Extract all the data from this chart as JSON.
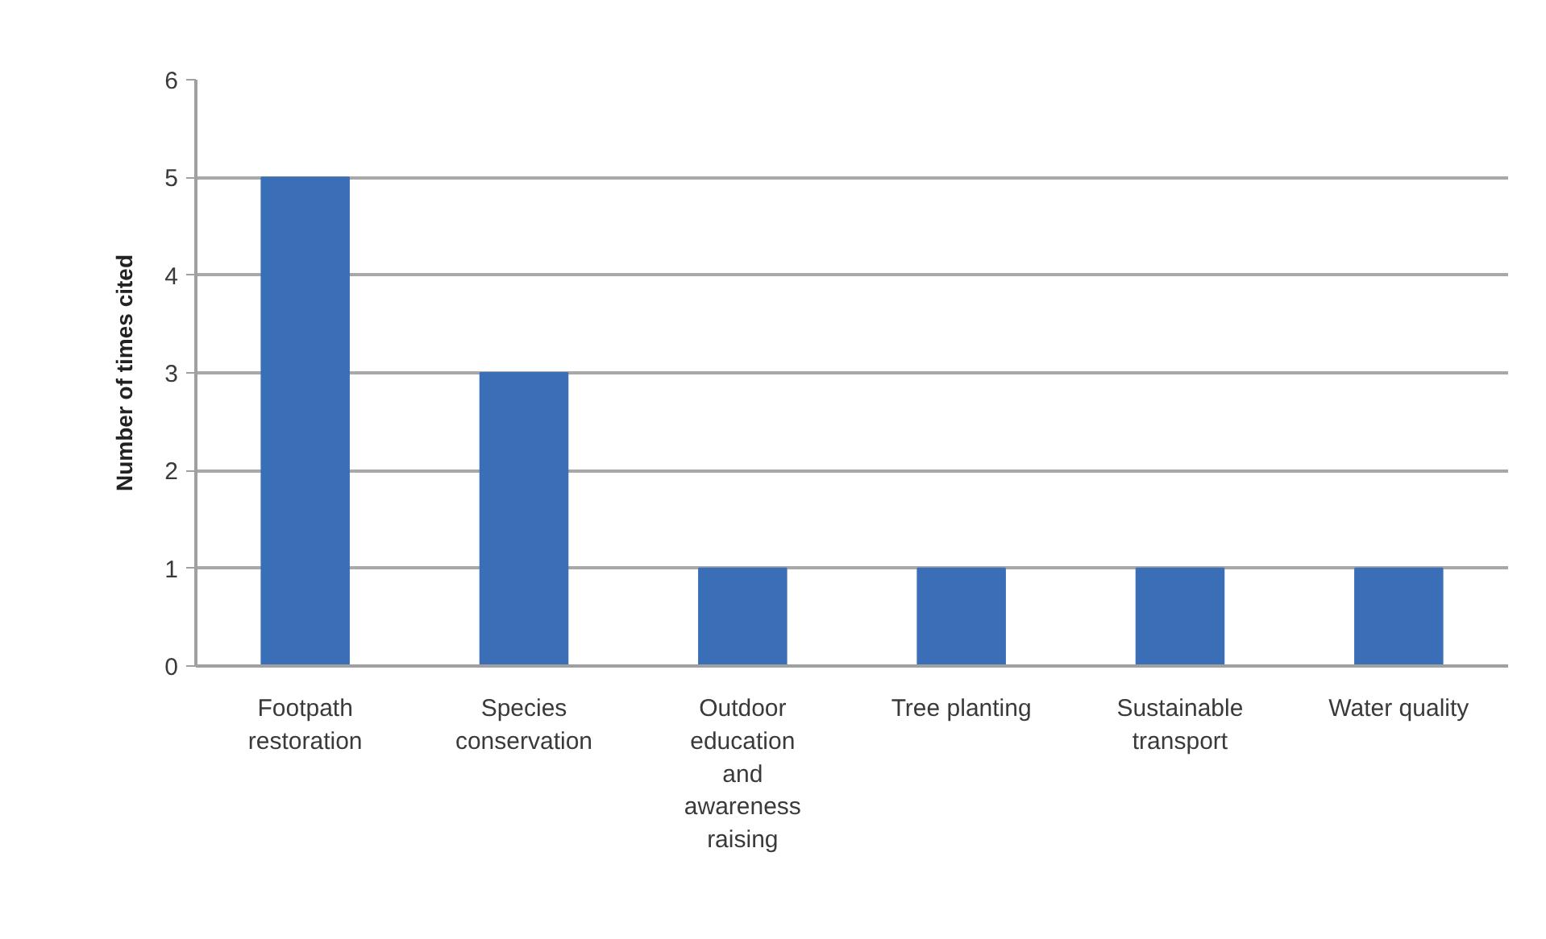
{
  "chart_data": {
    "type": "bar",
    "ylabel": "Number of times cited",
    "categories": [
      "Footpath restoration",
      "Species conservation",
      "Outdoor education and awareness raising",
      "Tree planting",
      "Sustainable transport",
      "Water quality"
    ],
    "values": [
      5,
      3,
      1,
      1,
      1,
      1
    ],
    "color": "#3a6fb8",
    "ylim": [
      0,
      6
    ],
    "yticks": [
      0,
      1,
      2,
      3,
      4,
      5,
      6
    ],
    "grid": "y"
  }
}
